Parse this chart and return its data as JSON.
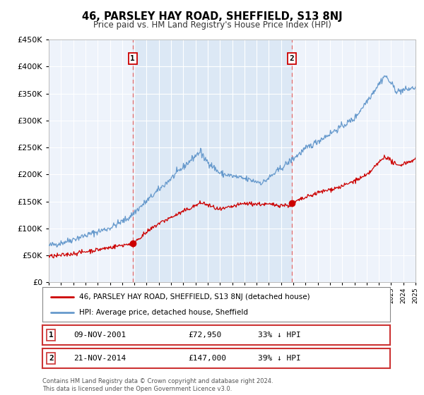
{
  "title": "46, PARSLEY HAY ROAD, SHEFFIELD, S13 8NJ",
  "subtitle": "Price paid vs. HM Land Registry's House Price Index (HPI)",
  "xlim": [
    1995,
    2025
  ],
  "ylim": [
    0,
    450000
  ],
  "yticks": [
    0,
    50000,
    100000,
    150000,
    200000,
    250000,
    300000,
    350000,
    400000,
    450000
  ],
  "sale1_date": 2001.86,
  "sale1_price": 72950,
  "sale2_date": 2014.89,
  "sale2_price": 147000,
  "red_color": "#cc0000",
  "blue_color": "#6699cc",
  "vline_color": "#e87878",
  "shade_color": "#dce8f5",
  "grid_color": "#cccccc",
  "bg_color": "#eef3fb",
  "legend_line1": "46, PARSLEY HAY ROAD, SHEFFIELD, S13 8NJ (detached house)",
  "legend_line2": "HPI: Average price, detached house, Sheffield",
  "footer1": "Contains HM Land Registry data © Crown copyright and database right 2024.",
  "footer2": "This data is licensed under the Open Government Licence v3.0."
}
